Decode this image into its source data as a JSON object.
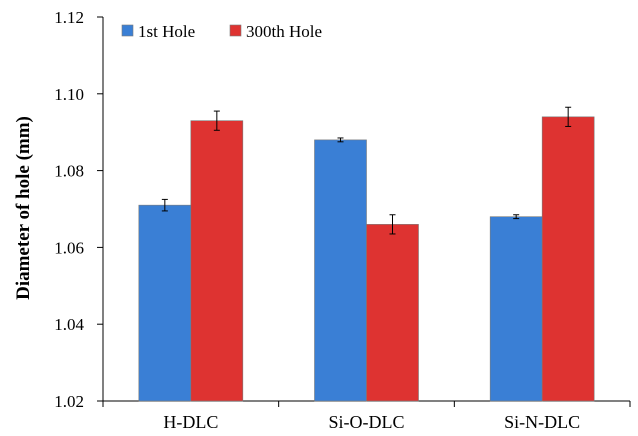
{
  "chart_data": {
    "type": "bar",
    "xlabel": "",
    "ylabel": "Diameter of hole (mm)",
    "ylim": [
      1.02,
      1.12
    ],
    "yticks": [
      "1.02",
      "1.04",
      "1.06",
      "1.08",
      "1.10",
      "1.12"
    ],
    "categories": [
      "H-DLC",
      "Si-O-DLC",
      "Si-N-DLC"
    ],
    "series": [
      {
        "name": "1st Hole",
        "color": "#3a7fd5",
        "values": [
          1.071,
          1.088,
          1.068
        ],
        "errors": [
          0.0015,
          0.0005,
          0.0005
        ]
      },
      {
        "name": "300th Hole",
        "color": "#de3331",
        "values": [
          1.093,
          1.066,
          1.094
        ],
        "errors": [
          0.0025,
          0.0025,
          0.0025
        ]
      }
    ],
    "legend_position": "top-left",
    "grid": false
  }
}
